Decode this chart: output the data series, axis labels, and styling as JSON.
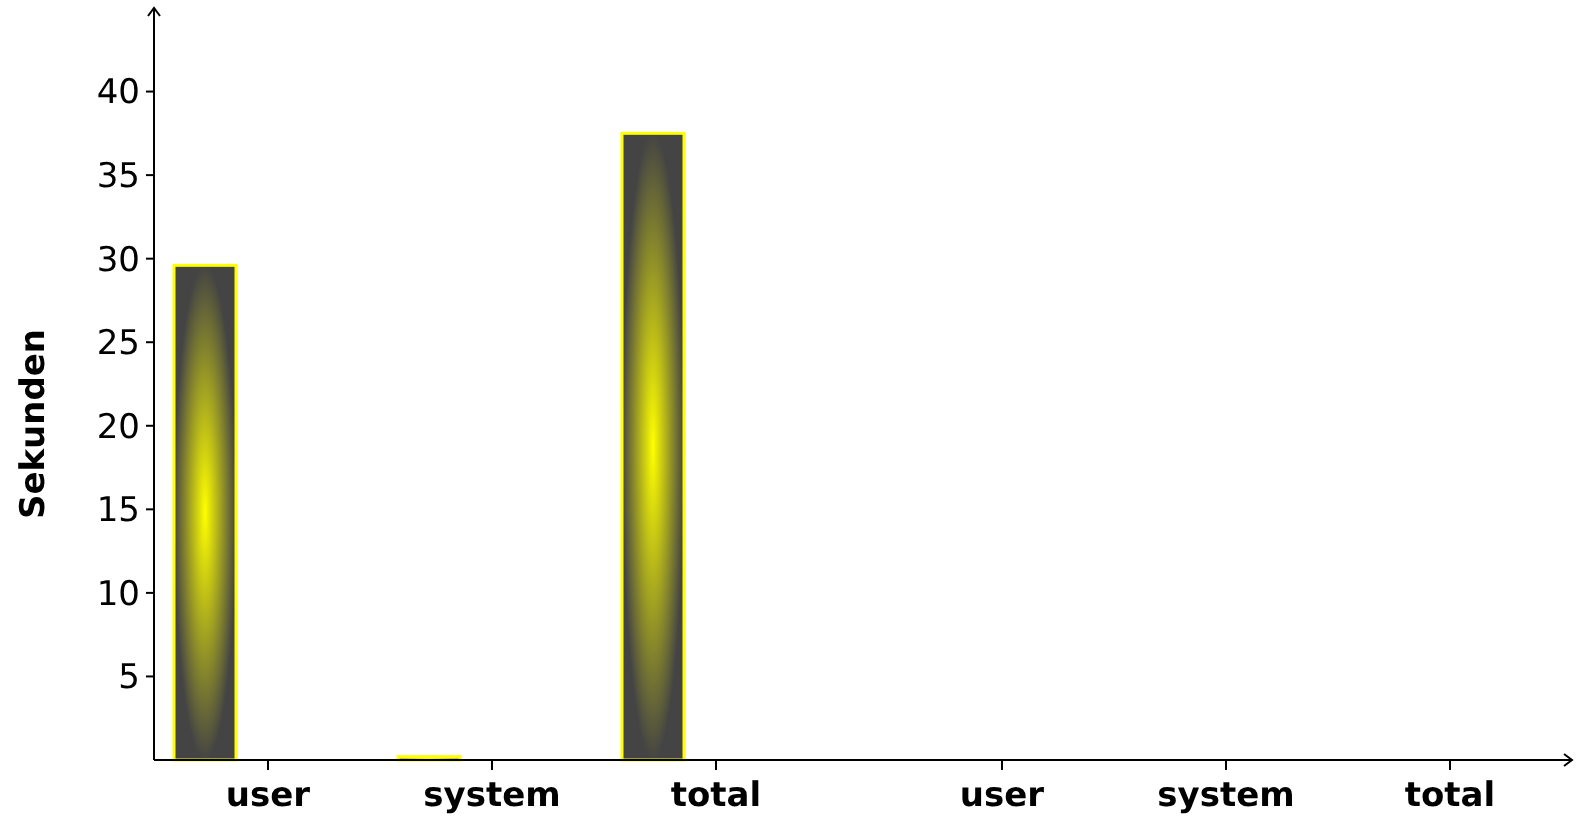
{
  "chart_data": {
    "type": "bar",
    "ylabel": "Sekunden",
    "categories": [
      "user",
      "system",
      "total",
      "user",
      "system",
      "total"
    ],
    "values": [
      29.6,
      0.2,
      37.5,
      null,
      null,
      null
    ],
    "color": "#ffff00",
    "ylim": [
      0,
      45
    ],
    "yticks": [
      5,
      10,
      15,
      20,
      25,
      30,
      35,
      40
    ],
    "grid": false
  }
}
